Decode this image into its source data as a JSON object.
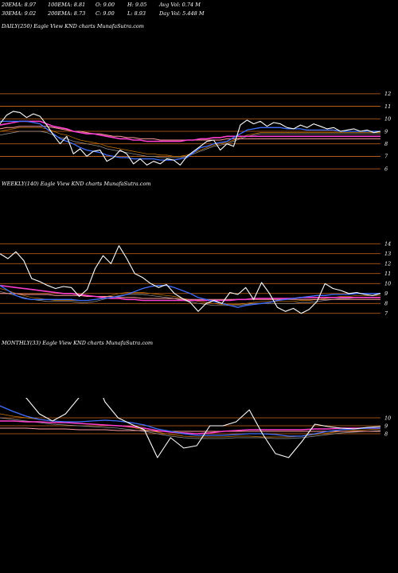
{
  "header": {
    "row1": [
      {
        "key": "ema20",
        "text": "20EMA: 8.97"
      },
      {
        "key": "ema100",
        "text": "100EMA: 8.81"
      },
      {
        "key": "open",
        "text": "O: 9.00"
      },
      {
        "key": "high",
        "text": "H: 9.05"
      },
      {
        "key": "avgvol",
        "text": "Avg Vol: 0.74  M"
      }
    ],
    "row2": [
      {
        "key": "ema30",
        "text": "30EMA: 9.02"
      },
      {
        "key": "ema200",
        "text": "200EMA: 8.73"
      },
      {
        "key": "close",
        "text": "C: 9.00"
      },
      {
        "key": "low",
        "text": "L: 8.93"
      },
      {
        "key": "dayvol",
        "text": "Day Vol: 5.448  M"
      }
    ]
  },
  "colors": {
    "background": "#000000",
    "price": "#ffffff",
    "grid": "#d2691e",
    "ema_blue": "#3f6fff",
    "ema_magenta": "#ff3fd0",
    "ema_pink": "#ff9999",
    "ema_orange": "#cc7a00",
    "ema_grey": "#9a9a9a"
  },
  "chart_data": [
    {
      "type": "line",
      "title": "DAILY(250) Eagle  View  KND charts MunafaSutra.com",
      "ylim": [
        5.5,
        12.5
      ],
      "yticks": [
        6,
        7,
        8,
        9,
        10,
        11,
        12
      ],
      "grid": "horizontal",
      "series": [
        {
          "role": "price",
          "values": [
            9.6,
            10.3,
            10.6,
            10.5,
            10.1,
            10.4,
            10.2,
            9.5,
            8.7,
            8.0,
            8.6,
            7.2,
            7.6,
            7.0,
            7.4,
            7.5,
            6.6,
            6.9,
            7.5,
            7.2,
            6.4,
            6.8,
            6.3,
            6.6,
            6.4,
            6.8,
            6.7,
            6.3,
            7.0,
            7.4,
            7.8,
            8.2,
            8.3,
            7.5,
            8.0,
            7.8,
            9.5,
            9.9,
            9.6,
            9.8,
            9.4,
            9.7,
            9.6,
            9.3,
            9.2,
            9.5,
            9.3,
            9.6,
            9.4,
            9.2,
            9.3,
            9.0,
            9.1,
            9.2,
            9.0,
            9.1,
            8.9,
            9.0
          ]
        },
        {
          "role": "ema_blue",
          "values": [
            9.8,
            9.8,
            9.8,
            9.8,
            9.8,
            9.7,
            9.6,
            9.2,
            8.8,
            8.4,
            8.2,
            8.0,
            7.7,
            7.5,
            7.4,
            7.3,
            7.1,
            7.0,
            6.9,
            6.9,
            6.8,
            6.8,
            6.8,
            6.8,
            6.7,
            6.7,
            6.7,
            6.8,
            6.9,
            7.3,
            7.7,
            7.8,
            8.0,
            8.1,
            8.2,
            8.5,
            8.8,
            9.1,
            9.2,
            9.3,
            9.3,
            9.3,
            9.3,
            9.2,
            9.2,
            9.2,
            9.1,
            9.1,
            9.1,
            9.1,
            9.1,
            9.0,
            9.0,
            9.0,
            9.0,
            9.0,
            9.0,
            9.0
          ]
        },
        {
          "role": "ema_magenta",
          "values": [
            9.5,
            9.6,
            9.7,
            9.8,
            9.8,
            9.8,
            9.8,
            9.6,
            9.4,
            9.3,
            9.2,
            9.0,
            8.9,
            8.8,
            8.8,
            8.7,
            8.6,
            8.5,
            8.4,
            8.4,
            8.3,
            8.3,
            8.2,
            8.2,
            8.2,
            8.2,
            8.2,
            8.2,
            8.3,
            8.3,
            8.4,
            8.4,
            8.5,
            8.5,
            8.6,
            8.6,
            8.6,
            8.6,
            8.6,
            8.6,
            8.6,
            8.6,
            8.6,
            8.6,
            8.6,
            8.6,
            8.6,
            8.6,
            8.6,
            8.6,
            8.6,
            8.6,
            8.6,
            8.6,
            8.6,
            8.6,
            8.6,
            8.6
          ]
        },
        {
          "role": "ema_pink",
          "values": [
            9.2,
            9.3,
            9.3,
            9.4,
            9.4,
            9.4,
            9.4,
            9.4,
            9.3,
            9.2,
            9.1,
            9.0,
            9.0,
            8.9,
            8.8,
            8.8,
            8.7,
            8.6,
            8.6,
            8.5,
            8.5,
            8.4,
            8.4,
            8.4,
            8.3,
            8.3,
            8.3,
            8.3,
            8.3,
            8.3,
            8.3,
            8.3,
            8.3,
            8.3,
            8.4,
            8.4,
            8.4,
            8.4,
            8.4,
            8.4,
            8.4,
            8.4,
            8.4,
            8.4,
            8.4,
            8.4,
            8.4,
            8.4,
            8.4,
            8.4,
            8.4,
            8.4,
            8.4,
            8.4,
            8.4,
            8.4,
            8.4,
            8.4
          ]
        },
        {
          "role": "ema_orange",
          "values": [
            9.0,
            9.1,
            9.2,
            9.3,
            9.3,
            9.3,
            9.3,
            9.2,
            9.0,
            8.8,
            8.7,
            8.5,
            8.3,
            8.2,
            8.1,
            8.0,
            7.8,
            7.7,
            7.6,
            7.5,
            7.4,
            7.3,
            7.2,
            7.2,
            7.1,
            7.1,
            7.0,
            7.0,
            7.1,
            7.3,
            7.5,
            7.7,
            7.9,
            8.0,
            8.1,
            8.3,
            8.5,
            8.7,
            8.8,
            8.9,
            8.9,
            8.9,
            8.9,
            8.9,
            8.9,
            8.9,
            8.9,
            8.9,
            8.9,
            8.9,
            8.9,
            8.9,
            8.9,
            8.9,
            8.9,
            8.9,
            8.9,
            8.9
          ]
        },
        {
          "role": "ema_grey",
          "values": [
            8.7,
            8.8,
            8.9,
            9.0,
            9.0,
            9.0,
            9.0,
            8.9,
            8.7,
            8.5,
            8.4,
            8.2,
            8.1,
            8.0,
            7.9,
            7.8,
            7.6,
            7.5,
            7.4,
            7.3,
            7.2,
            7.1,
            7.0,
            7.0,
            6.9,
            6.9,
            6.9,
            6.9,
            7.0,
            7.2,
            7.4,
            7.6,
            7.8,
            7.9,
            8.0,
            8.2,
            8.4,
            8.6,
            8.7,
            8.8,
            8.8,
            8.8,
            8.8,
            8.8,
            8.8,
            8.8,
            8.8,
            8.8,
            8.8,
            8.8,
            8.8,
            8.8,
            8.8,
            8.8,
            8.8,
            8.8,
            8.8,
            8.8
          ]
        }
      ]
    },
    {
      "type": "line",
      "title": "WEEKLY(140) Eagle  View  KND charts MunafaSutra.com",
      "ylim": [
        6.5,
        14.5
      ],
      "yticks": [
        7,
        8,
        9,
        10,
        11,
        12,
        13,
        14
      ],
      "grid": "horizontal",
      "series": [
        {
          "role": "price",
          "values": [
            13.0,
            12.5,
            13.2,
            12.3,
            10.5,
            10.2,
            9.8,
            9.5,
            9.7,
            9.6,
            8.7,
            9.4,
            11.5,
            12.8,
            12.0,
            13.8,
            12.5,
            11.0,
            10.6,
            10.0,
            9.6,
            9.9,
            9.0,
            8.5,
            8.1,
            7.2,
            8.0,
            8.3,
            8.0,
            9.1,
            8.9,
            9.6,
            8.4,
            10.1,
            9.0,
            7.6,
            7.2,
            7.5,
            7.0,
            7.4,
            8.2,
            10.0,
            9.5,
            9.3,
            9.0,
            9.1,
            8.9,
            8.8,
            9.0
          ]
        },
        {
          "role": "ema_blue",
          "values": [
            9.8,
            9.3,
            8.8,
            8.5,
            8.4,
            8.4,
            8.4,
            8.4,
            8.4,
            8.4,
            8.3,
            8.3,
            8.4,
            8.5,
            8.6,
            8.7,
            8.9,
            9.2,
            9.5,
            9.7,
            9.8,
            9.8,
            9.6,
            9.3,
            9.0,
            8.6,
            8.4,
            8.2,
            8.0,
            7.8,
            7.6,
            7.8,
            7.9,
            8.0,
            8.1,
            8.3,
            8.4,
            8.5,
            8.6,
            8.7,
            8.8,
            8.8,
            8.9,
            8.9,
            8.9,
            9.0,
            9.0,
            9.0,
            9.0
          ]
        },
        {
          "role": "ema_magenta",
          "values": [
            9.8,
            9.7,
            9.6,
            9.5,
            9.4,
            9.3,
            9.2,
            9.1,
            9.0,
            9.0,
            8.9,
            8.8,
            8.7,
            8.6,
            8.5,
            8.5,
            8.4,
            8.4,
            8.3,
            8.3,
            8.3,
            8.3,
            8.3,
            8.3,
            8.3,
            8.3,
            8.3,
            8.3,
            8.3,
            8.3,
            8.4,
            8.4,
            8.5,
            8.5,
            8.5,
            8.5,
            8.5,
            8.5,
            8.6,
            8.6,
            8.6,
            8.6,
            8.6,
            8.6,
            8.6,
            8.6,
            8.6,
            8.6,
            8.6
          ]
        },
        {
          "role": "ema_pink",
          "values": [
            9.0,
            9.0,
            9.0,
            8.9,
            8.9,
            8.9,
            8.9,
            8.8,
            8.8,
            8.8,
            8.8,
            8.7,
            8.7,
            8.7,
            8.7,
            8.6,
            8.6,
            8.6,
            8.5,
            8.5,
            8.5,
            8.5,
            8.5,
            8.4,
            8.4,
            8.4,
            8.4,
            8.4,
            8.4,
            8.4,
            8.4,
            8.4,
            8.4,
            8.4,
            8.4,
            8.4,
            8.4,
            8.4,
            8.4,
            8.4,
            8.4,
            8.4,
            8.4,
            8.4,
            8.4,
            8.4,
            8.4,
            8.4,
            8.4
          ]
        },
        {
          "role": "ema_orange",
          "values": [
            9.5,
            9.3,
            9.0,
            8.8,
            8.6,
            8.5,
            8.4,
            8.3,
            8.3,
            8.3,
            8.3,
            8.3,
            8.4,
            8.6,
            8.8,
            9.0,
            9.1,
            9.1,
            9.1,
            9.0,
            8.9,
            8.8,
            8.7,
            8.5,
            8.4,
            8.2,
            8.1,
            8.0,
            7.9,
            7.9,
            7.9,
            8.0,
            8.1,
            8.2,
            8.2,
            8.2,
            8.2,
            8.2,
            8.3,
            8.3,
            8.4,
            8.5,
            8.6,
            8.7,
            8.7,
            8.8,
            8.8,
            8.8,
            8.8
          ]
        },
        {
          "role": "ema_grey",
          "values": [
            9.2,
            9.0,
            8.8,
            8.6,
            8.4,
            8.3,
            8.2,
            8.2,
            8.2,
            8.2,
            8.1,
            8.1,
            8.2,
            8.4,
            8.6,
            8.8,
            8.9,
            8.9,
            8.9,
            8.8,
            8.7,
            8.6,
            8.5,
            8.3,
            8.2,
            8.0,
            7.9,
            7.8,
            7.8,
            7.8,
            7.8,
            7.9,
            8.0,
            8.0,
            8.0,
            8.0,
            8.0,
            8.0,
            8.1,
            8.1,
            8.2,
            8.3,
            8.4,
            8.5,
            8.5,
            8.6,
            8.6,
            8.6,
            8.6
          ]
        }
      ]
    },
    {
      "type": "line",
      "title": "MONTHLY(33) Eagle  View  KND charts MunafaSutra.com",
      "ylim": [
        1.5,
        12.5
      ],
      "yticks": [
        8,
        9,
        10
      ],
      "grid": "horizontal",
      "series": [
        {
          "role": "price",
          "values": [
            13.0,
            13.0,
            12.5,
            10.5,
            9.6,
            10.5,
            12.5,
            16.0,
            12.0,
            10.0,
            9.2,
            8.5,
            5.0,
            7.5,
            6.2,
            6.5,
            9.0,
            9.0,
            9.5,
            11.0,
            8.0,
            5.5,
            5.0,
            7.0,
            9.2,
            8.9,
            8.7,
            8.6,
            8.8,
            8.9
          ]
        },
        {
          "role": "ema_blue",
          "values": [
            11.5,
            10.8,
            10.2,
            9.8,
            9.6,
            9.5,
            9.5,
            9.6,
            9.7,
            9.6,
            9.4,
            9.1,
            8.6,
            8.3,
            8.0,
            7.8,
            7.8,
            7.8,
            7.9,
            8.0,
            8.0,
            7.9,
            7.7,
            7.7,
            8.0,
            8.3,
            8.5,
            8.6,
            8.7,
            8.7
          ]
        },
        {
          "role": "ema_magenta",
          "values": [
            9.6,
            9.6,
            9.5,
            9.5,
            9.4,
            9.4,
            9.3,
            9.2,
            9.1,
            9.0,
            8.9,
            8.7,
            8.4,
            8.2,
            8.1,
            8.0,
            8.1,
            8.3,
            8.4,
            8.5,
            8.5,
            8.5,
            8.5,
            8.5,
            8.6,
            8.6,
            8.7,
            8.7,
            8.7,
            8.7
          ]
        },
        {
          "role": "ema_pink",
          "values": [
            8.7,
            8.7,
            8.7,
            8.6,
            8.6,
            8.6,
            8.5,
            8.5,
            8.5,
            8.4,
            8.4,
            8.4,
            8.3,
            8.3,
            8.3,
            8.3,
            8.3,
            8.3,
            8.3,
            8.3,
            8.3,
            8.3,
            8.3,
            8.3,
            8.3,
            8.3,
            8.3,
            8.3,
            8.3,
            8.3
          ]
        },
        {
          "role": "ema_orange",
          "values": [
            10.5,
            10.2,
            10.0,
            9.8,
            9.6,
            9.4,
            9.3,
            9.2,
            9.1,
            9.0,
            8.8,
            8.5,
            8.2,
            7.9,
            7.7,
            7.6,
            7.6,
            7.6,
            7.7,
            7.7,
            7.6,
            7.6,
            7.6,
            7.7,
            7.9,
            8.1,
            8.3,
            8.4,
            8.5,
            8.6
          ]
        },
        {
          "role": "ema_grey",
          "values": [
            10.0,
            9.8,
            9.6,
            9.4,
            9.2,
            9.1,
            9.0,
            8.9,
            8.8,
            8.7,
            8.5,
            8.3,
            8.0,
            7.7,
            7.5,
            7.4,
            7.4,
            7.4,
            7.5,
            7.5,
            7.5,
            7.4,
            7.4,
            7.5,
            7.7,
            7.9,
            8.1,
            8.2,
            8.3,
            8.4
          ]
        }
      ]
    }
  ]
}
